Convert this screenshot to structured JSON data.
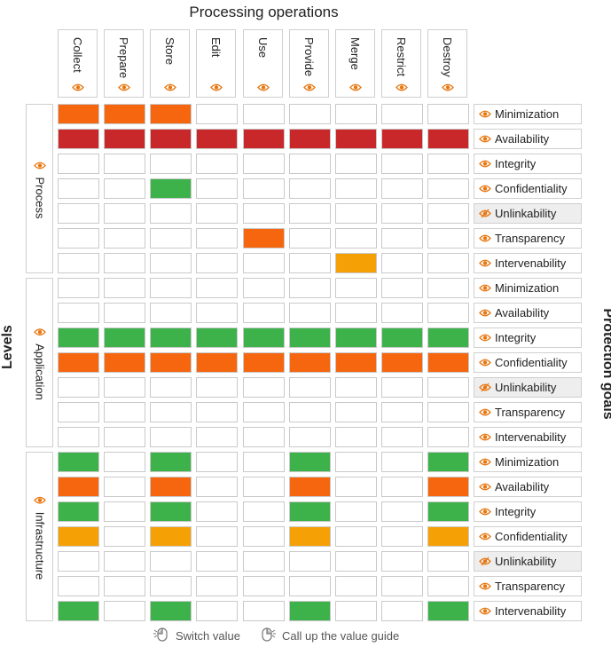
{
  "title": "Processing operations",
  "levels_title": "Levels",
  "goals_title": "Protection goals",
  "operations": [
    "Collect",
    "Prepare",
    "Store",
    "Edit",
    "Use",
    "Provide",
    "Merge",
    "Restrict",
    "Destroy"
  ],
  "levels": [
    {
      "label": "Process",
      "goals": [
        {
          "label": "Minimization",
          "icon": "eye-icon",
          "disabled": false,
          "cells": [
            "orange",
            "orange",
            "orange",
            "",
            "",
            "",
            "",
            "",
            ""
          ]
        },
        {
          "label": "Availability",
          "icon": "eye-icon",
          "disabled": false,
          "cells": [
            "red",
            "red",
            "red",
            "red",
            "red",
            "red",
            "red",
            "red",
            "red"
          ]
        },
        {
          "label": "Integrity",
          "icon": "eye-icon",
          "disabled": false,
          "cells": [
            "",
            "",
            "",
            "",
            "",
            "",
            "",
            "",
            ""
          ]
        },
        {
          "label": "Confidentiality",
          "icon": "eye-icon",
          "disabled": false,
          "cells": [
            "",
            "",
            "green",
            "",
            "",
            "",
            "",
            "",
            ""
          ]
        },
        {
          "label": "Unlinkability",
          "icon": "eye-slash-icon",
          "disabled": true,
          "cells": [
            "",
            "",
            "",
            "",
            "",
            "",
            "",
            "",
            ""
          ]
        },
        {
          "label": "Transparency",
          "icon": "eye-icon",
          "disabled": false,
          "cells": [
            "",
            "",
            "",
            "",
            "orange",
            "",
            "",
            "",
            ""
          ]
        },
        {
          "label": "Intervenability",
          "icon": "eye-icon",
          "disabled": false,
          "cells": [
            "",
            "",
            "",
            "",
            "",
            "",
            "amber",
            "",
            ""
          ]
        }
      ]
    },
    {
      "label": "Application",
      "goals": [
        {
          "label": "Minimization",
          "icon": "eye-icon",
          "disabled": false,
          "cells": [
            "",
            "",
            "",
            "",
            "",
            "",
            "",
            "",
            ""
          ]
        },
        {
          "label": "Availability",
          "icon": "eye-icon",
          "disabled": false,
          "cells": [
            "",
            "",
            "",
            "",
            "",
            "",
            "",
            "",
            ""
          ]
        },
        {
          "label": "Integrity",
          "icon": "eye-icon",
          "disabled": false,
          "cells": [
            "green",
            "green",
            "green",
            "green",
            "green",
            "green",
            "green",
            "green",
            "green"
          ]
        },
        {
          "label": "Confidentiality",
          "icon": "eye-icon",
          "disabled": false,
          "cells": [
            "orange",
            "orange",
            "orange",
            "orange",
            "orange",
            "orange",
            "orange",
            "orange",
            "orange"
          ]
        },
        {
          "label": "Unlinkability",
          "icon": "eye-slash-icon",
          "disabled": true,
          "cells": [
            "",
            "",
            "",
            "",
            "",
            "",
            "",
            "",
            ""
          ]
        },
        {
          "label": "Transparency",
          "icon": "eye-icon",
          "disabled": false,
          "cells": [
            "",
            "",
            "",
            "",
            "",
            "",
            "",
            "",
            ""
          ]
        },
        {
          "label": "Intervenability",
          "icon": "eye-icon",
          "disabled": false,
          "cells": [
            "",
            "",
            "",
            "",
            "",
            "",
            "",
            "",
            ""
          ]
        }
      ]
    },
    {
      "label": "Infrastructure",
      "goals": [
        {
          "label": "Minimization",
          "icon": "eye-icon",
          "disabled": false,
          "cells": [
            "green",
            "",
            "green",
            "",
            "",
            "green",
            "",
            "",
            "green"
          ]
        },
        {
          "label": "Availability",
          "icon": "eye-icon",
          "disabled": false,
          "cells": [
            "orange",
            "",
            "orange",
            "",
            "",
            "orange",
            "",
            "",
            "orange"
          ]
        },
        {
          "label": "Integrity",
          "icon": "eye-icon",
          "disabled": false,
          "cells": [
            "green",
            "",
            "green",
            "",
            "",
            "green",
            "",
            "",
            "green"
          ]
        },
        {
          "label": "Confidentiality",
          "icon": "eye-icon",
          "disabled": false,
          "cells": [
            "amber",
            "",
            "amber",
            "",
            "",
            "amber",
            "",
            "",
            "amber"
          ]
        },
        {
          "label": "Unlinkability",
          "icon": "eye-slash-icon",
          "disabled": true,
          "cells": [
            "",
            "",
            "",
            "",
            "",
            "",
            "",
            "",
            ""
          ]
        },
        {
          "label": "Transparency",
          "icon": "eye-icon",
          "disabled": false,
          "cells": [
            "",
            "",
            "",
            "",
            "",
            "",
            "",
            "",
            ""
          ]
        },
        {
          "label": "Intervenability",
          "icon": "eye-icon",
          "disabled": false,
          "cells": [
            "green",
            "",
            "green",
            "",
            "",
            "green",
            "",
            "",
            "green"
          ]
        }
      ]
    }
  ],
  "colors": {
    "orange": "#f5660f",
    "red": "#c8282a",
    "green": "#3db24b",
    "amber": "#f5a005",
    "empty": "#ffffff",
    "eye": "#e8760f"
  },
  "footer": {
    "switch_label": "Switch value",
    "switch_icon": "mouse-left-click-icon",
    "guide_label": "Call up the value guide",
    "guide_icon": "mouse-right-click-icon"
  }
}
